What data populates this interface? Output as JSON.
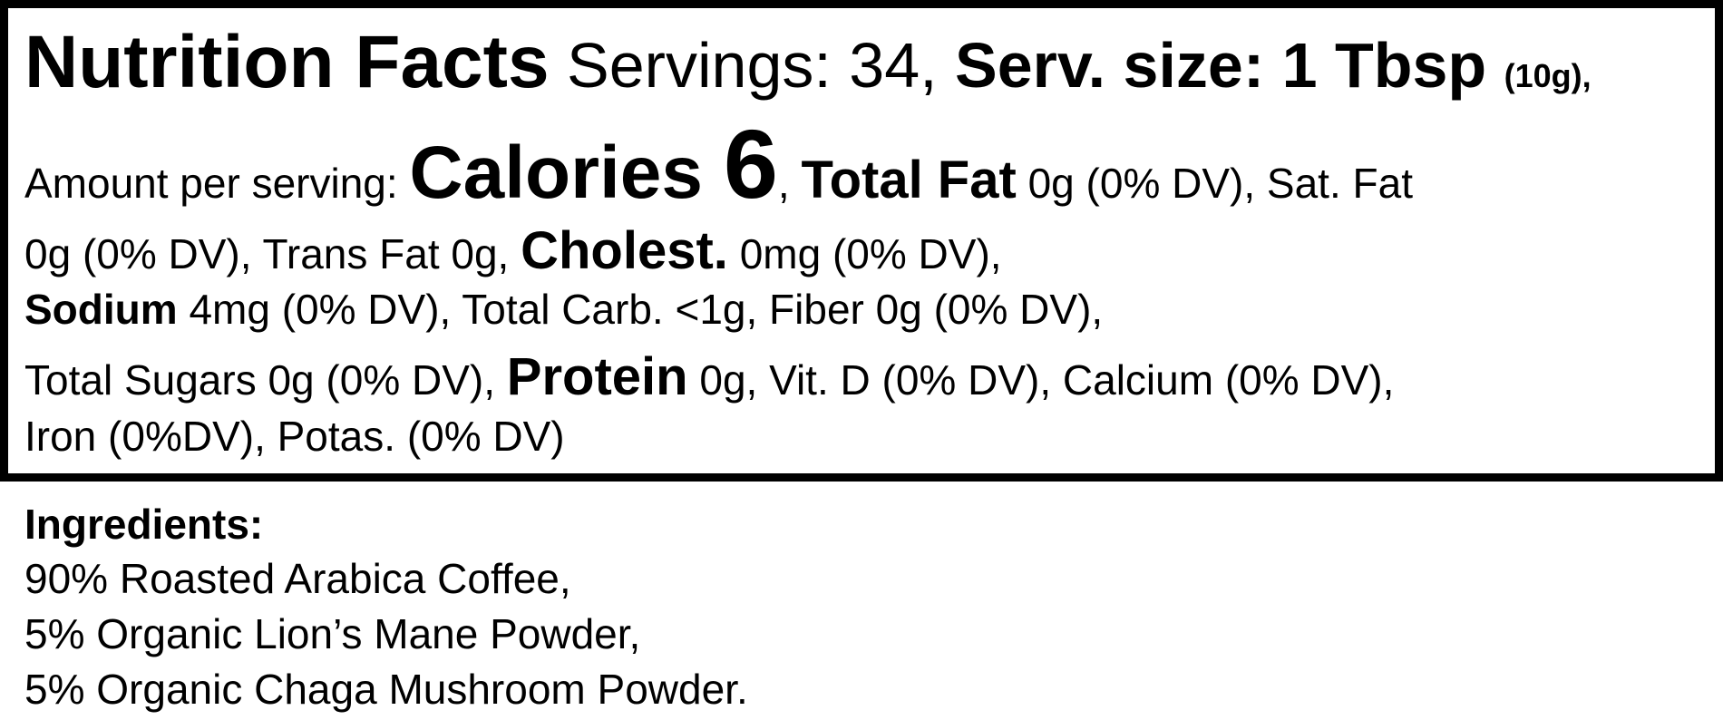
{
  "nutrition": {
    "title": "Nutrition Facts",
    "servings": " Servings: 34, ",
    "serv_size": "Serv. size: 1 Tbsp ",
    "serv_grams": "(10g),",
    "amount_label": "Amount per serving: ",
    "calories_label": "Calories ",
    "calories_value": "6",
    "comma1": ", ",
    "total_fat_label": "Total Fat",
    "total_fat_value": " 0g (0% DV), Sat. Fat",
    "sat_fat_value": "0g (0% DV), Trans Fat 0g, ",
    "cholest_label": "Cholest.",
    "cholest_value": " 0mg (0% DV),",
    "sodium_label": "Sodium",
    "sodium_value": " 4mg (0% DV), Total Carb. <1g, Fiber 0g (0% DV),",
    "sugars_value": "Total Sugars 0g (0% DV), ",
    "protein_label": "Protein",
    "protein_value": " 0g, Vit. D (0% DV), Calcium (0% DV),",
    "minerals_value": "Iron (0%DV), Potas. (0% DV)"
  },
  "ingredients": {
    "heading": "Ingredients:",
    "items": [
      "90% Roasted Arabica Coffee,",
      "5% Organic Lion’s Mane Powder,",
      "5% Organic Chaga Mushroom Powder."
    ]
  }
}
